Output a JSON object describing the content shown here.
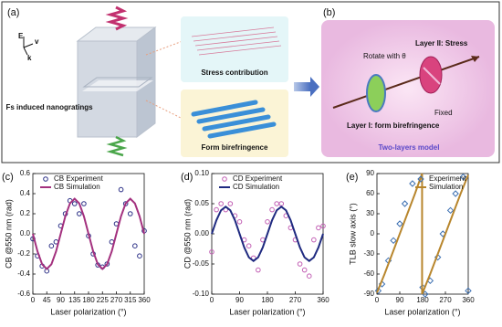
{
  "diagram": {
    "panel_a": "(a)",
    "panel_b": "(b)",
    "field_e": "E",
    "field_v": "v",
    "field_k": "k",
    "sample": "Fs induced nanogratings",
    "stress": "Stress contribution",
    "form": "Form birefringence",
    "rotate": "Rotate with θ",
    "layer2": "Layer II: Stress",
    "layer1": "Layer I: form birefringence",
    "fixed": "Fixed",
    "model": "Two-layers model"
  },
  "chart_data": [
    {
      "type": "line",
      "panel": "(c)",
      "xlabel": "Laser polarization (°)",
      "ylabel": "CB @550 nm (rad)",
      "xlim": [
        0,
        360
      ],
      "xticks": [
        0,
        45,
        90,
        135,
        180,
        225,
        270,
        315,
        360
      ],
      "ylim": [
        -0.6,
        0.6
      ],
      "yticks": [
        -0.6,
        -0.4,
        -0.2,
        {
          "value": 0,
          "label": "0.0"
        },
        0.2,
        0.4,
        0.6
      ],
      "legend": "upper-left",
      "series": [
        {
          "name": "CB Experiment",
          "mode": "markers",
          "marker": "circle",
          "color": "#2b2f86",
          "x": [
            0,
            15,
            30,
            45,
            60,
            75,
            90,
            105,
            120,
            135,
            150,
            165,
            180,
            195,
            210,
            225,
            240,
            255,
            270,
            285,
            300,
            315,
            330,
            345,
            360
          ],
          "values": [
            -0.05,
            -0.22,
            -0.32,
            -0.37,
            -0.12,
            -0.08,
            0.08,
            0.2,
            0.33,
            0.3,
            0.2,
            0.3,
            -0.02,
            -0.2,
            -0.31,
            -0.33,
            -0.3,
            -0.08,
            0.1,
            0.44,
            0.3,
            0.2,
            -0.12,
            -0.22,
            0.03
          ]
        },
        {
          "name": "CB Simulation",
          "mode": "line",
          "color": "#a3307e",
          "x": [
            0,
            15,
            30,
            45,
            60,
            75,
            90,
            105,
            120,
            135,
            150,
            165,
            180,
            195,
            210,
            225,
            240,
            255,
            270,
            285,
            300,
            315,
            330,
            345,
            360
          ],
          "values": [
            0,
            -0.175,
            -0.303,
            -0.35,
            -0.303,
            -0.175,
            0,
            0.175,
            0.303,
            0.35,
            0.303,
            0.175,
            0,
            -0.175,
            -0.303,
            -0.35,
            -0.303,
            -0.175,
            0,
            0.175,
            0.303,
            0.35,
            0.303,
            0.175,
            0
          ]
        }
      ]
    },
    {
      "type": "line",
      "panel": "(d)",
      "xlabel": "Laser polarization (°)",
      "ylabel": "CD @550 nm (rad)",
      "xlim": [
        0,
        360
      ],
      "xticks": [
        0,
        90,
        180,
        270,
        360
      ],
      "ylim": [
        -0.1,
        0.1
      ],
      "yticks": [
        {
          "value": -0.1,
          "label": "-0.10"
        },
        -0.05,
        {
          "value": 0,
          "label": "0.00"
        },
        0.05,
        {
          "value": 0.1,
          "label": "0.10"
        }
      ],
      "legend": "upper-left",
      "series": [
        {
          "name": "CD Experiment",
          "mode": "markers",
          "marker": "circle",
          "color": "#c25fb4",
          "x": [
            0,
            15,
            30,
            45,
            60,
            75,
            90,
            105,
            120,
            135,
            150,
            165,
            180,
            195,
            210,
            225,
            240,
            255,
            270,
            285,
            300,
            315,
            330,
            345,
            360
          ],
          "values": [
            -0.03,
            0.04,
            0.05,
            0.04,
            0.05,
            0.03,
            0.02,
            -0.01,
            -0.02,
            -0.04,
            -0.06,
            -0.01,
            0.02,
            0.04,
            0.05,
            0.05,
            0.03,
            0.01,
            -0.01,
            -0.05,
            -0.06,
            -0.07,
            -0.01,
            0.01,
            0.013
          ]
        },
        {
          "name": "CD Simulation",
          "mode": "line",
          "color": "#1f2a80",
          "x": [
            0,
            15,
            30,
            45,
            60,
            75,
            90,
            105,
            120,
            135,
            150,
            165,
            180,
            195,
            210,
            225,
            240,
            255,
            270,
            285,
            300,
            315,
            330,
            345,
            360
          ],
          "values": [
            0,
            0.0225,
            0.039,
            0.045,
            0.039,
            0.0225,
            0,
            -0.0225,
            -0.039,
            -0.045,
            -0.039,
            -0.0225,
            0,
            0.0225,
            0.039,
            0.045,
            0.039,
            0.0225,
            0,
            -0.0225,
            -0.039,
            -0.045,
            -0.039,
            -0.0225,
            0
          ]
        }
      ]
    },
    {
      "type": "line",
      "panel": "(e)",
      "xlabel": "Laser polarization (°)",
      "ylabel": "TLB slow axis (°)",
      "xlim": [
        0,
        360
      ],
      "xticks": [
        0,
        90,
        180,
        270,
        360
      ],
      "ylim": [
        -90,
        90
      ],
      "yticks": [
        -90,
        -60,
        -30,
        0,
        30,
        60,
        90
      ],
      "legend": "upper-right",
      "series": [
        {
          "name": "Experiment",
          "mode": "markers",
          "marker": "diamond",
          "color": "#3b6fb2",
          "x": [
            5,
            20,
            45,
            65,
            90,
            110,
            140,
            180,
            190,
            210,
            240,
            260,
            290,
            310,
            340,
            360
          ],
          "values": [
            -85,
            -75,
            -40,
            -10,
            15,
            45,
            75,
            -80,
            -90,
            -70,
            -35,
            0,
            35,
            60,
            85,
            -85
          ]
        },
        {
          "name": "Simulation",
          "mode": "line",
          "color": "#b8862d",
          "x": [
            0,
            30,
            60,
            90,
            120,
            150,
            178,
            178,
            210,
            240,
            270,
            300,
            330,
            360
          ],
          "values": [
            -88,
            -60,
            -30,
            0,
            30,
            60,
            90,
            -90,
            -60,
            -30,
            0,
            30,
            60,
            88
          ]
        }
      ]
    }
  ]
}
